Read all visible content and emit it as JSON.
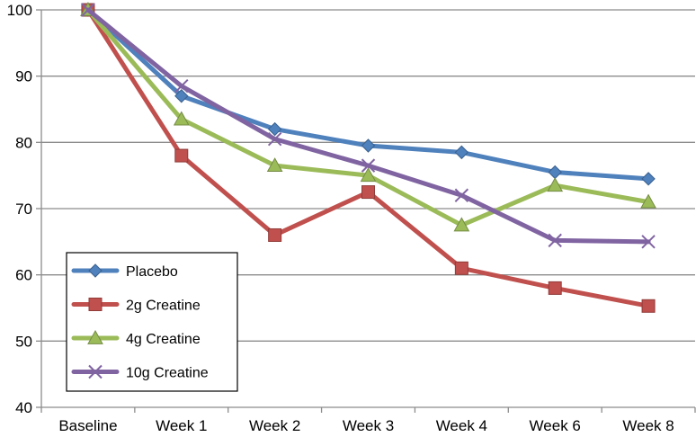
{
  "chart_data": {
    "type": "line",
    "title": "",
    "xlabel": "",
    "ylabel": "",
    "categories": [
      "Baseline",
      "Week 1",
      "Week 2",
      "Week 3",
      "Week 4",
      "Week 6",
      "Week 8"
    ],
    "ylim": [
      40,
      100
    ],
    "yticks": [
      "40",
      "50",
      "60",
      "70",
      "80",
      "90",
      "100"
    ],
    "grid": true,
    "legend_position": "bottom-left",
    "series": [
      {
        "name": "Placebo",
        "color": "#4F81BD",
        "marker": "diamond",
        "values": [
          100,
          87,
          82,
          79.5,
          78.5,
          75.5,
          74.5
        ]
      },
      {
        "name": "2g Creatine",
        "color": "#C0504D",
        "marker": "square",
        "values": [
          100,
          78,
          66,
          72.5,
          61,
          58,
          55.3
        ]
      },
      {
        "name": "4g Creatine",
        "color": "#9BBB59",
        "marker": "triangle",
        "values": [
          100,
          83.5,
          76.5,
          75,
          67.5,
          73.5,
          71
        ]
      },
      {
        "name": "10g Creatine",
        "color": "#8064A2",
        "marker": "x",
        "values": [
          100,
          88.5,
          80.5,
          76.5,
          72,
          65.2,
          65
        ]
      }
    ]
  }
}
